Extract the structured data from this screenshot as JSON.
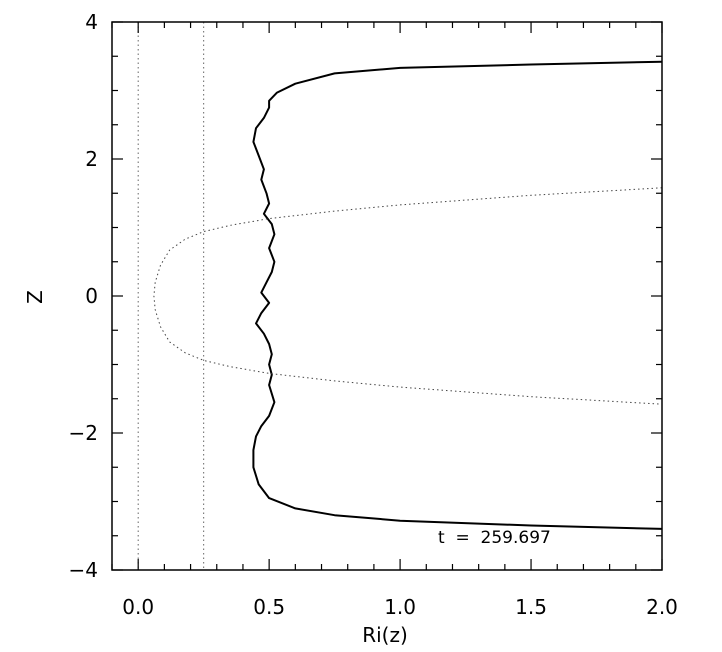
{
  "chart_data": {
    "type": "line",
    "title": "",
    "xlabel": "Ri(z)",
    "ylabel": "Z",
    "xlim": [
      -0.1,
      2.0
    ],
    "ylim": [
      -4,
      4
    ],
    "grid": false,
    "x_ticks": [
      0.0,
      0.5,
      1.0,
      1.5,
      2.0
    ],
    "x_tick_labels": [
      "0.0",
      "0.5",
      "1.0",
      "1.5",
      "2.0"
    ],
    "y_ticks": [
      -4,
      -2,
      0,
      2,
      4
    ],
    "y_tick_labels": [
      "−4",
      "−2",
      "0",
      "2",
      "4"
    ],
    "annotation": "t  =  259.697",
    "reference_lines_x": [
      0.0,
      0.25
    ],
    "series": [
      {
        "style": "solid",
        "points": [
          [
            2.0,
            3.42
          ],
          [
            1.5,
            3.38
          ],
          [
            1.0,
            3.33
          ],
          [
            0.75,
            3.25
          ],
          [
            0.6,
            3.1
          ],
          [
            0.53,
            2.97
          ],
          [
            0.5,
            2.85
          ],
          [
            0.5,
            2.75
          ],
          [
            0.48,
            2.6
          ],
          [
            0.45,
            2.45
          ],
          [
            0.44,
            2.25
          ],
          [
            0.46,
            2.05
          ],
          [
            0.48,
            1.85
          ],
          [
            0.47,
            1.7
          ],
          [
            0.49,
            1.5
          ],
          [
            0.5,
            1.35
          ],
          [
            0.48,
            1.2
          ],
          [
            0.51,
            1.05
          ],
          [
            0.52,
            0.9
          ],
          [
            0.5,
            0.7
          ],
          [
            0.52,
            0.5
          ],
          [
            0.51,
            0.35
          ],
          [
            0.49,
            0.2
          ],
          [
            0.47,
            0.05
          ],
          [
            0.5,
            -0.1
          ],
          [
            0.47,
            -0.25
          ],
          [
            0.45,
            -0.4
          ],
          [
            0.48,
            -0.55
          ],
          [
            0.5,
            -0.7
          ],
          [
            0.51,
            -0.85
          ],
          [
            0.5,
            -1.0
          ],
          [
            0.51,
            -1.15
          ],
          [
            0.5,
            -1.3
          ],
          [
            0.52,
            -1.55
          ],
          [
            0.5,
            -1.75
          ],
          [
            0.47,
            -1.9
          ],
          [
            0.45,
            -2.05
          ],
          [
            0.44,
            -2.25
          ],
          [
            0.44,
            -2.5
          ],
          [
            0.46,
            -2.75
          ],
          [
            0.5,
            -2.95
          ],
          [
            0.6,
            -3.1
          ],
          [
            0.75,
            -3.2
          ],
          [
            1.0,
            -3.28
          ],
          [
            1.5,
            -3.35
          ],
          [
            2.0,
            -3.4
          ]
        ]
      },
      {
        "style": "dotted",
        "points": [
          [
            2.0,
            1.58
          ],
          [
            1.5,
            1.47
          ],
          [
            1.0,
            1.33
          ],
          [
            0.75,
            1.24
          ],
          [
            0.5,
            1.13
          ],
          [
            0.35,
            1.03
          ],
          [
            0.25,
            0.94
          ],
          [
            0.18,
            0.83
          ],
          [
            0.12,
            0.67
          ],
          [
            0.085,
            0.45
          ],
          [
            0.065,
            0.2
          ],
          [
            0.06,
            0.0
          ],
          [
            0.065,
            -0.2
          ],
          [
            0.085,
            -0.45
          ],
          [
            0.12,
            -0.67
          ],
          [
            0.18,
            -0.83
          ],
          [
            0.25,
            -0.94
          ],
          [
            0.35,
            -1.03
          ],
          [
            0.5,
            -1.13
          ],
          [
            0.75,
            -1.24
          ],
          [
            1.0,
            -1.33
          ],
          [
            1.5,
            -1.47
          ],
          [
            2.0,
            -1.58
          ]
        ]
      }
    ]
  }
}
